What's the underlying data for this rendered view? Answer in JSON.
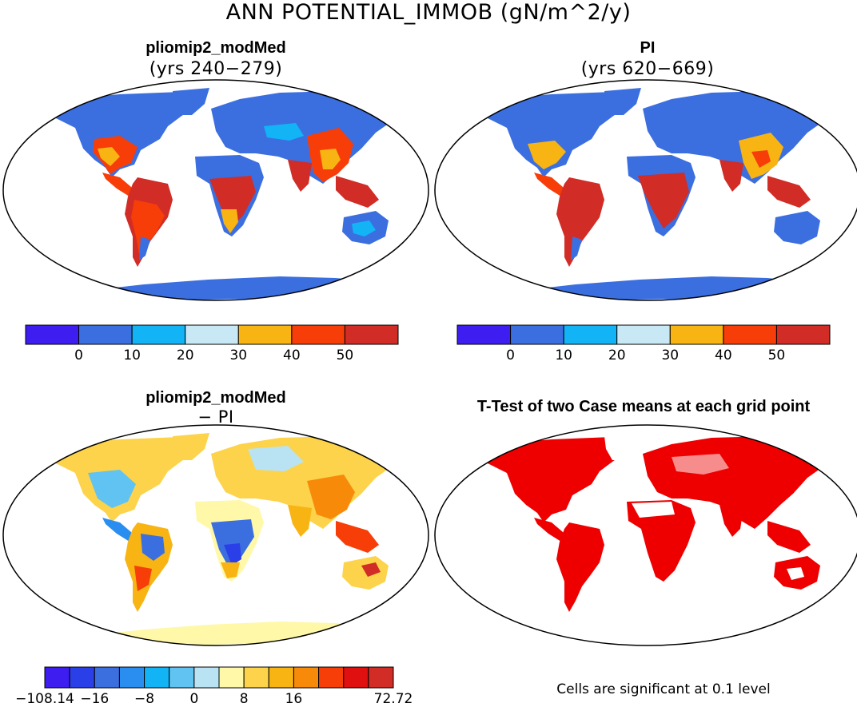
{
  "title": "ANN POTENTIAL_IMMOB (gN/m^2/y)",
  "panels": [
    {
      "name": "pliomip2_modMed",
      "subtitle": "(yrs 240−279)"
    },
    {
      "name": "PI",
      "subtitle": "(yrs 620−669)"
    },
    {
      "name": "pliomip2_modMed",
      "subtitle": "− PI"
    },
    {
      "name": "T-Test of two Case means at each grid point",
      "subtitle": ""
    }
  ],
  "colorbar_abs": {
    "colors": [
      "#3d1df0",
      "#3b6fe0",
      "#12b4f5",
      "#c8e8f5",
      "#f8b412",
      "#f73d08",
      "#d12c26"
    ],
    "labels": [
      "0",
      "10",
      "20",
      "30",
      "40",
      "50"
    ]
  },
  "colorbar_diff": {
    "colors": [
      "#3d1df0",
      "#2b3fe8",
      "#3b6fe0",
      "#2a8ef0",
      "#12b4f5",
      "#61c3f2",
      "#b9e3f2",
      "#fff8a8",
      "#fcd34a",
      "#f8b412",
      "#f88a0a",
      "#f73d08",
      "#e01010",
      "#d12c26"
    ],
    "labels": [
      "−108.14",
      "−16",
      "−8",
      "0",
      "8",
      "16",
      "72.72"
    ]
  },
  "ttest_note": "Cells are significant at 0.1 level",
  "colors": {
    "land_abs_low": "#3b6fe0",
    "signif": "#ee0000",
    "coast": "#000000"
  }
}
